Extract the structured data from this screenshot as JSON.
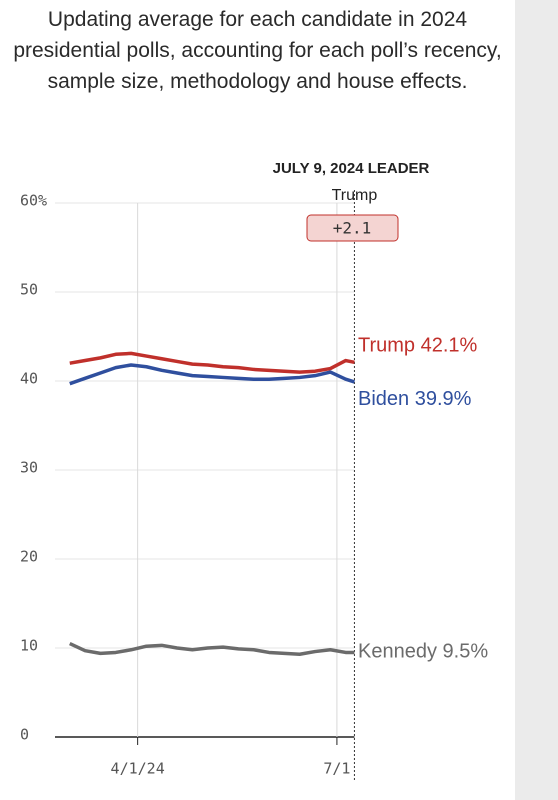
{
  "chart_data": {
    "type": "line",
    "subtitle": "Updating average for each candidate in 2024 presidential polls, accounting for each poll’s recency, sample size, methodology and house effects.",
    "x": [
      "2024-03-01",
      "2024-03-08",
      "2024-03-15",
      "2024-03-22",
      "2024-03-29",
      "2024-04-05",
      "2024-04-12",
      "2024-04-19",
      "2024-04-26",
      "2024-05-03",
      "2024-05-10",
      "2024-05-17",
      "2024-05-24",
      "2024-05-31",
      "2024-06-07",
      "2024-06-14",
      "2024-06-21",
      "2024-06-28",
      "2024-07-05",
      "2024-07-09"
    ],
    "series": [
      {
        "name": "Trump",
        "color": "#c0302b",
        "end_label": "Trump 42.1%",
        "values": [
          42,
          42.3,
          42.6,
          43,
          43.1,
          42.8,
          42.5,
          42.2,
          41.9,
          41.8,
          41.6,
          41.5,
          41.3,
          41.2,
          41.1,
          41,
          41.1,
          41.4,
          42.3,
          42.1
        ]
      },
      {
        "name": "Biden",
        "color": "#2f4f9e",
        "end_label": "Biden 39.9%",
        "values": [
          39.7,
          40.3,
          40.9,
          41.5,
          41.8,
          41.6,
          41.2,
          40.9,
          40.6,
          40.5,
          40.4,
          40.3,
          40.2,
          40.2,
          40.3,
          40.4,
          40.6,
          41,
          40.2,
          39.9
        ]
      },
      {
        "name": "Kennedy",
        "color": "#6b6b6b",
        "end_label": "Kennedy 9.5%",
        "values": [
          10.5,
          9.7,
          9.4,
          9.5,
          9.8,
          10.2,
          10.3,
          10,
          9.8,
          10,
          10.1,
          9.9,
          9.8,
          9.5,
          9.4,
          9.3,
          9.6,
          9.8,
          9.5,
          9.5
        ]
      }
    ],
    "xlim": [
      "2024-02-26",
      "2024-07-12"
    ],
    "xticks": [
      {
        "value": "2024-04-01",
        "label": "4/1/24"
      },
      {
        "value": "2024-07-01",
        "label": "7/1"
      }
    ],
    "ylim": [
      0,
      60
    ],
    "yticks": [
      0,
      10,
      20,
      30,
      40,
      50,
      {
        "value": 60,
        "label": "60%"
      }
    ],
    "grid": true,
    "leader": {
      "title": "JULY 9, 2024 LEADER",
      "date": "2024-07-09",
      "name": "Trump",
      "margin": {
        "value": 2.1,
        "label": "+2.1"
      }
    }
  }
}
